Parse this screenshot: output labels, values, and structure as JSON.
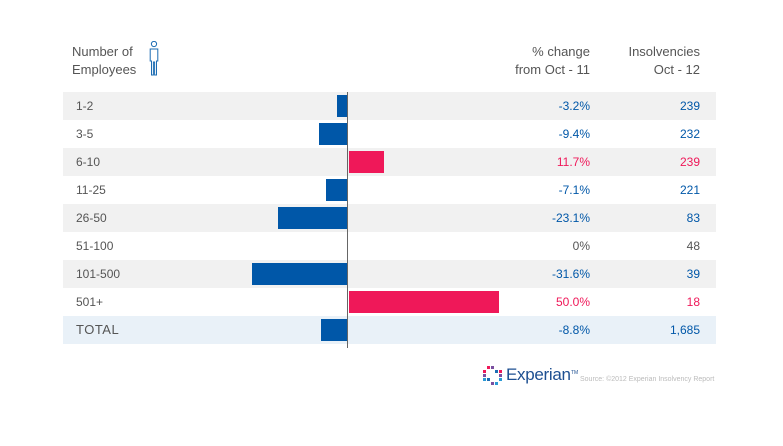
{
  "header": {
    "employees_line1": "Number of",
    "employees_line2": "Employees",
    "pct_line1": "% change",
    "pct_line2": "from Oct - 11",
    "ins_line1": "Insolvencies",
    "ins_line2": "Oct - 12"
  },
  "chart_data": {
    "type": "bar",
    "orientation": "horizontal",
    "categories": [
      "1-2",
      "3-5",
      "6-10",
      "11-25",
      "26-50",
      "51-100",
      "101-500",
      "501+",
      "TOTAL"
    ],
    "series": [
      {
        "values": [
          -3.2,
          -9.4,
          11.7,
          -7.1,
          -23.1,
          0,
          -31.6,
          50.0,
          -8.8
        ]
      }
    ],
    "pct_labels": [
      "-3.2%",
      "-9.4%",
      "11.7%",
      "-7.1%",
      "-23.1%",
      "0%",
      "-31.6%",
      "50.0%",
      "-8.8%"
    ],
    "insolvencies": [
      "239",
      "232",
      "239",
      "221",
      "83",
      "48",
      "39",
      "18",
      "1,685"
    ],
    "xlim": [
      -32,
      51
    ],
    "colors": {
      "negative": "#0057a8",
      "positive": "#ef1859",
      "zero": "#555555"
    }
  },
  "footer": {
    "brand": "Experian",
    "trademark": "TM",
    "source": "Source: ©2012 Experian Insolvency Report"
  },
  "icons": [
    "person-icon",
    "experian-logo-icon"
  ]
}
